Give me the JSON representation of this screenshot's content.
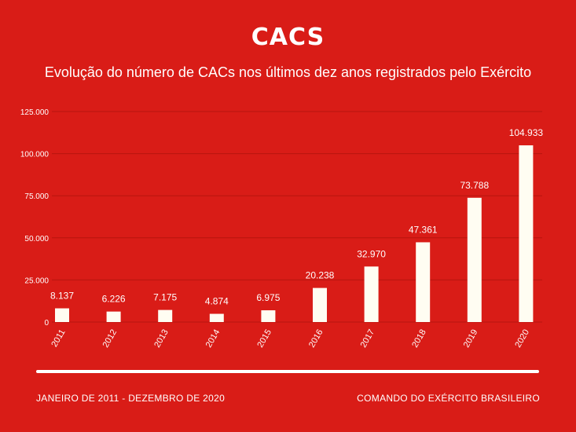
{
  "header": {
    "title": "CACS",
    "subtitle": "Evolução do número de CACs nos últimos dez anos registrados pelo Exército"
  },
  "footer": {
    "left": "JANEIRO DE 2011 - DEZEMBRO DE 2020",
    "right": "COMANDO DO EXÉRCITO BRASILEIRO"
  },
  "colors": {
    "background": "#d91c17",
    "bar": "#fffdf2",
    "gridline": "#b8150f",
    "text": "#ffffff"
  },
  "chart_data": {
    "type": "bar",
    "categories": [
      "2011",
      "2012",
      "2013",
      "2014",
      "2015",
      "2016",
      "2017",
      "2018",
      "2019",
      "2020"
    ],
    "values": [
      8137,
      6226,
      7175,
      4874,
      6975,
      20238,
      32970,
      47361,
      73788,
      104933
    ],
    "value_labels": [
      "8.137",
      "6.226",
      "7.175",
      "4.874",
      "6.975",
      "20.238",
      "32.970",
      "47.361",
      "73.788",
      "104.933"
    ],
    "y_ticks": [
      0,
      25000,
      50000,
      75000,
      100000,
      125000
    ],
    "y_tick_labels": [
      "0",
      "25.000",
      "50.000",
      "75.000",
      "100.000",
      "125.000"
    ],
    "ylim": [
      0,
      125000
    ],
    "grid": true,
    "legend": "none"
  }
}
